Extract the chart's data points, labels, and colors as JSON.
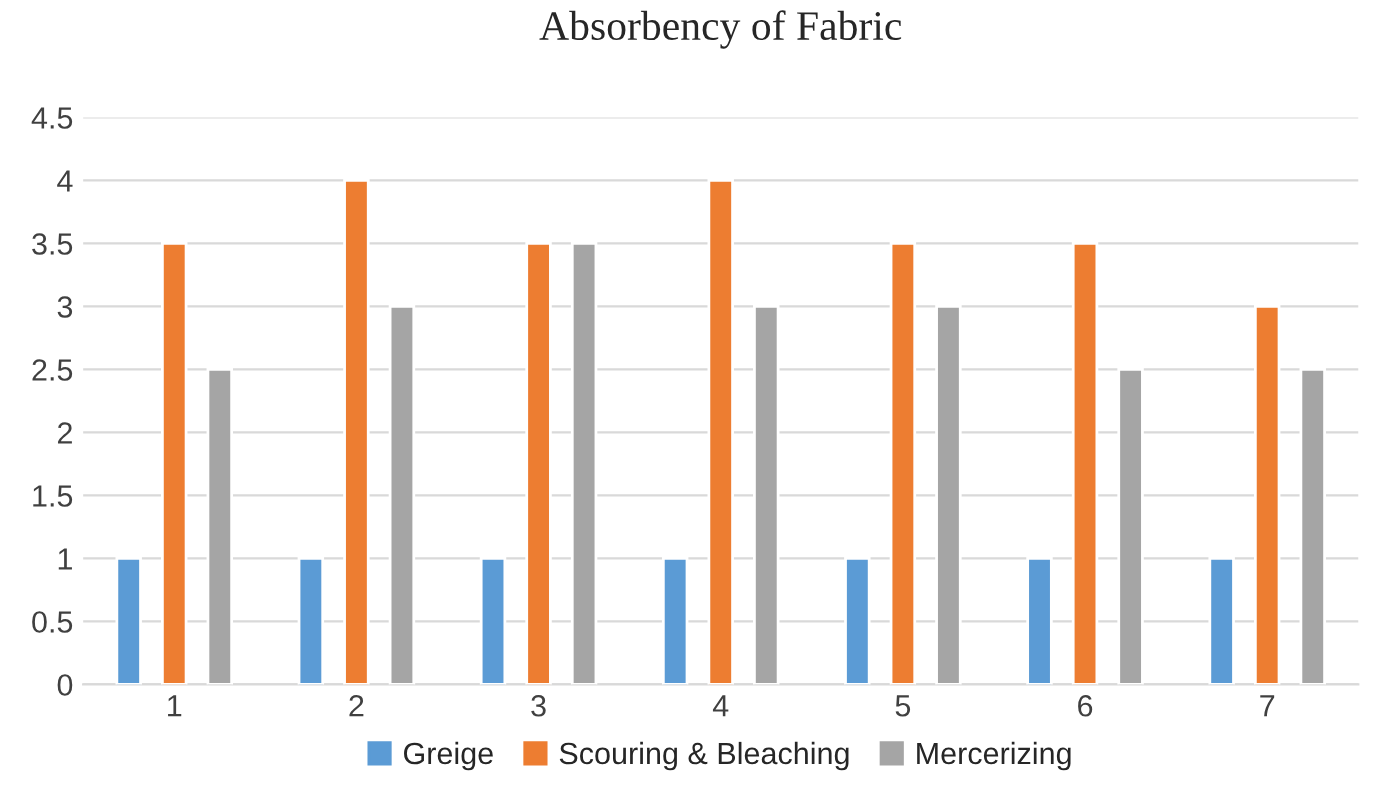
{
  "chart_data": {
    "type": "bar",
    "title": "Absorbency of Fabric",
    "categories": [
      "1",
      "2",
      "3",
      "4",
      "5",
      "6",
      "7"
    ],
    "series": [
      {
        "name": "Greige",
        "color": "#5b9bd5",
        "values": [
          1,
          1,
          1,
          1,
          1,
          1,
          1
        ]
      },
      {
        "name": "Scouring & Bleaching",
        "color": "#ed7d31",
        "values": [
          3.5,
          4,
          3.5,
          4,
          3.5,
          3.5,
          3
        ]
      },
      {
        "name": "Mercerizing",
        "color": "#a5a5a5",
        "values": [
          2.5,
          3,
          3.5,
          3,
          3,
          2.5,
          2.5
        ]
      }
    ],
    "ylim": [
      0,
      4.5
    ],
    "yticks": [
      0,
      0.5,
      1,
      1.5,
      2,
      2.5,
      3,
      3.5,
      4,
      4.5
    ],
    "grid": "y",
    "legend": "bottom"
  }
}
